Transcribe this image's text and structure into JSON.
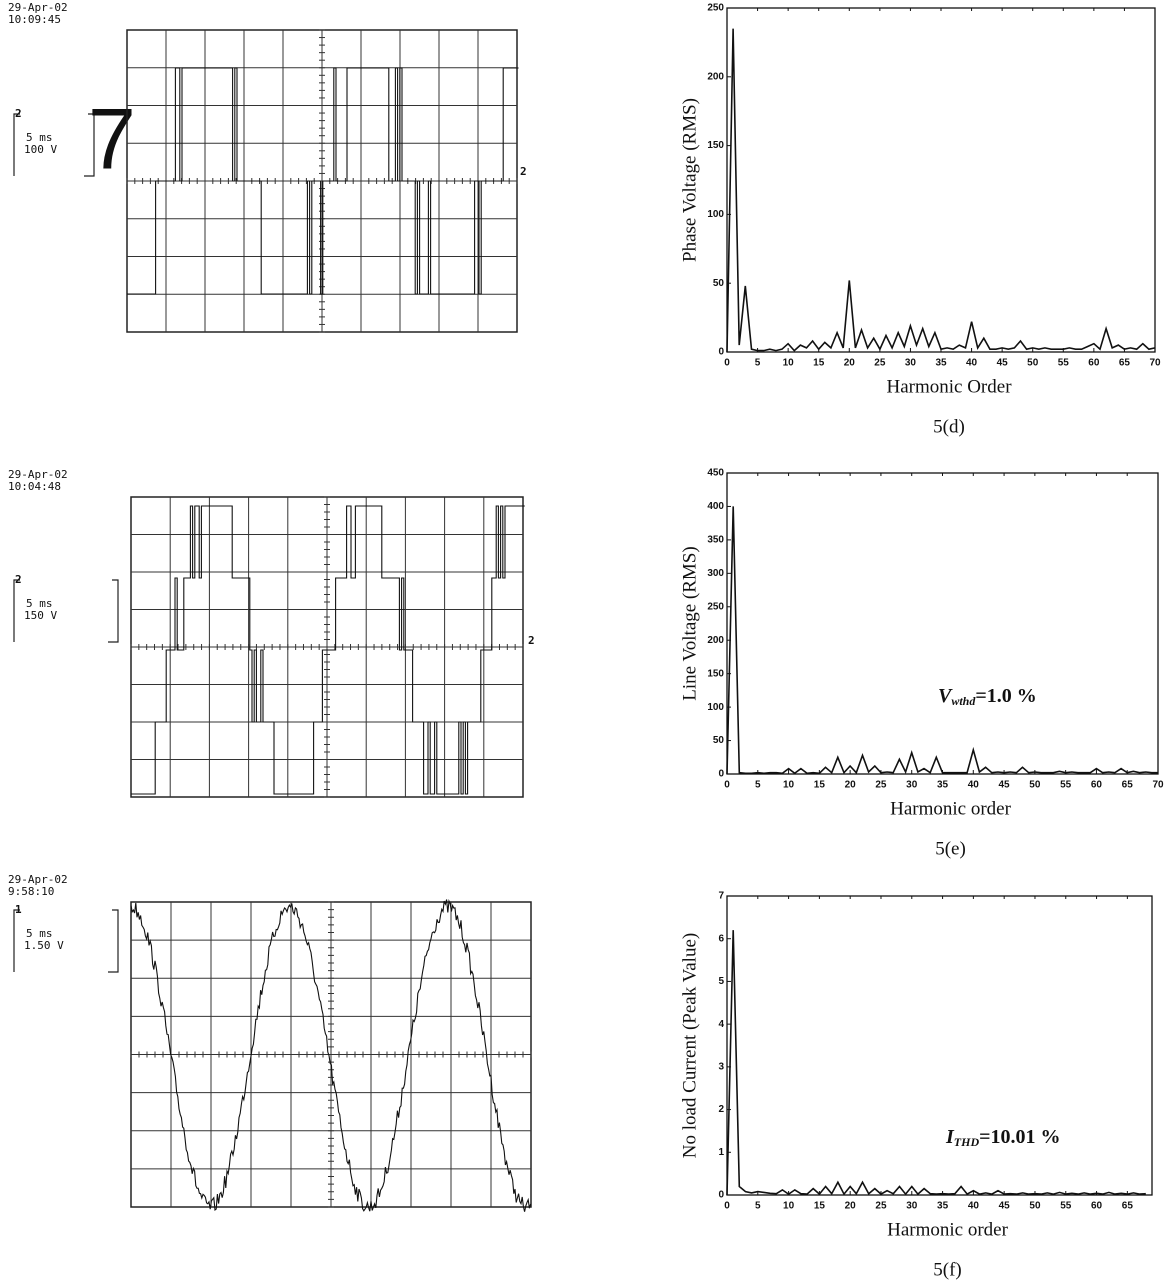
{
  "scopes": [
    {
      "timestamp": [
        "29-Apr-02",
        "10:09:45"
      ],
      "channel": "2",
      "timebase": "5 ms",
      "scale": "100 V",
      "marker": "2",
      "figure_number": "7"
    },
    {
      "timestamp": [
        "29-Apr-02",
        "10:04:48"
      ],
      "channel": "2",
      "timebase": "5 ms",
      "scale": "150 V",
      "marker": "2"
    },
    {
      "timestamp": [
        "29-Apr-02",
        "9:58:10"
      ],
      "channel": "1",
      "timebase": "5 ms",
      "scale": "1.50 V"
    }
  ],
  "chart_data": [
    {
      "type": "line",
      "ylabel": "Phase Voltage (RMS)",
      "xlabel": "Harmonic Order",
      "caption": "5(d)",
      "xlim": [
        0,
        70
      ],
      "ylim": [
        0,
        250
      ],
      "xticks": [
        0,
        5,
        10,
        15,
        20,
        25,
        30,
        35,
        40,
        45,
        50,
        55,
        60,
        65,
        70
      ],
      "yticks": [
        0,
        50,
        100,
        150,
        200,
        250
      ],
      "color": "#111111",
      "x": [
        0,
        1,
        2,
        3,
        4,
        5,
        6,
        7,
        8,
        9,
        10,
        11,
        12,
        13,
        14,
        15,
        16,
        17,
        18,
        19,
        20,
        21,
        22,
        23,
        24,
        25,
        26,
        27,
        28,
        29,
        30,
        31,
        32,
        33,
        34,
        35,
        36,
        37,
        38,
        39,
        40,
        41,
        42,
        43,
        44,
        45,
        46,
        47,
        48,
        49,
        50,
        51,
        52,
        53,
        54,
        55,
        56,
        57,
        58,
        59,
        60,
        61,
        62,
        63,
        64,
        65,
        66,
        67,
        68,
        69,
        70
      ],
      "values": [
        0,
        235,
        5,
        48,
        2,
        1,
        1,
        2,
        1,
        2,
        6,
        1,
        5,
        3,
        8,
        2,
        7,
        3,
        14,
        3,
        52,
        3,
        16,
        3,
        10,
        2,
        12,
        3,
        14,
        4,
        19,
        5,
        17,
        4,
        14,
        2,
        3,
        2,
        5,
        3,
        22,
        3,
        10,
        2,
        2,
        3,
        2,
        3,
        8,
        2,
        3,
        2,
        3,
        2,
        2,
        2,
        3,
        2,
        2,
        4,
        6,
        2,
        17,
        3,
        5,
        2,
        3,
        2,
        6,
        2,
        3
      ]
    },
    {
      "type": "line",
      "ylabel": "Line Voltage (RMS)",
      "xlabel": "Harmonic order",
      "caption": "5(e)",
      "annotation": [
        "V",
        "wthd",
        "=1.0 %"
      ],
      "xlim": [
        0,
        70
      ],
      "ylim": [
        0,
        450
      ],
      "xticks": [
        0,
        5,
        10,
        15,
        20,
        25,
        30,
        35,
        40,
        45,
        50,
        55,
        60,
        65,
        70
      ],
      "yticks": [
        0,
        50,
        100,
        150,
        200,
        250,
        300,
        350,
        400,
        450
      ],
      "color": "#111111",
      "x": [
        0,
        1,
        2,
        3,
        4,
        5,
        6,
        7,
        8,
        9,
        10,
        11,
        12,
        13,
        14,
        15,
        16,
        17,
        18,
        19,
        20,
        21,
        22,
        23,
        24,
        25,
        26,
        27,
        28,
        29,
        30,
        31,
        32,
        33,
        34,
        35,
        36,
        37,
        38,
        39,
        40,
        41,
        42,
        43,
        44,
        45,
        46,
        47,
        48,
        49,
        50,
        51,
        52,
        53,
        54,
        55,
        56,
        57,
        58,
        59,
        60,
        61,
        62,
        63,
        64,
        65,
        66,
        67,
        68,
        69,
        70
      ],
      "values": [
        0,
        400,
        2,
        1,
        1,
        2,
        1,
        2,
        2,
        1,
        8,
        1,
        8,
        1,
        2,
        1,
        10,
        2,
        25,
        2,
        12,
        2,
        28,
        3,
        12,
        2,
        3,
        2,
        22,
        3,
        32,
        3,
        8,
        2,
        25,
        2,
        2,
        2,
        2,
        2,
        36,
        3,
        10,
        2,
        3,
        2,
        3,
        2,
        10,
        2,
        3,
        2,
        2,
        2,
        4,
        2,
        3,
        2,
        2,
        2,
        8,
        2,
        3,
        2,
        8,
        2,
        4,
        2,
        3,
        2,
        2
      ]
    },
    {
      "type": "line",
      "ylabel": "No load Current (Peak Value)",
      "xlabel": "Harmonic order",
      "caption": "5(f)",
      "annotation": [
        "I",
        "THD",
        "=10.01 %"
      ],
      "xlim": [
        0,
        69
      ],
      "ylim": [
        0,
        7
      ],
      "xticks": [
        0,
        5,
        10,
        15,
        20,
        25,
        30,
        35,
        40,
        45,
        50,
        55,
        60,
        65
      ],
      "yticks": [
        0,
        1,
        2,
        3,
        4,
        5,
        6,
        7
      ],
      "color": "#111111",
      "x": [
        0,
        1,
        2,
        3,
        4,
        5,
        6,
        7,
        8,
        9,
        10,
        11,
        12,
        13,
        14,
        15,
        16,
        17,
        18,
        19,
        20,
        21,
        22,
        23,
        24,
        25,
        26,
        27,
        28,
        29,
        30,
        31,
        32,
        33,
        34,
        35,
        36,
        37,
        38,
        39,
        40,
        41,
        42,
        43,
        44,
        45,
        46,
        47,
        48,
        49,
        50,
        51,
        52,
        53,
        54,
        55,
        56,
        57,
        58,
        59,
        60,
        61,
        62,
        63,
        64,
        65,
        66,
        67,
        68
      ],
      "values": [
        0,
        6.2,
        0.2,
        0.08,
        0.05,
        0.08,
        0.06,
        0.04,
        0.03,
        0.12,
        0.02,
        0.12,
        0.03,
        0.02,
        0.15,
        0.02,
        0.2,
        0.03,
        0.3,
        0.02,
        0.2,
        0.03,
        0.3,
        0.03,
        0.15,
        0.02,
        0.1,
        0.03,
        0.2,
        0.02,
        0.2,
        0.02,
        0.15,
        0.03,
        0.02,
        0.03,
        0.02,
        0.03,
        0.2,
        0.02,
        0.1,
        0.02,
        0.05,
        0.02,
        0.1,
        0.02,
        0.03,
        0.02,
        0.05,
        0.02,
        0.03,
        0.02,
        0.05,
        0.02,
        0.06,
        0.02,
        0.04,
        0.02,
        0.05,
        0.02,
        0.04,
        0.02,
        0.06,
        0.02,
        0.04,
        0.02,
        0.05,
        0.02,
        0.03
      ]
    }
  ]
}
